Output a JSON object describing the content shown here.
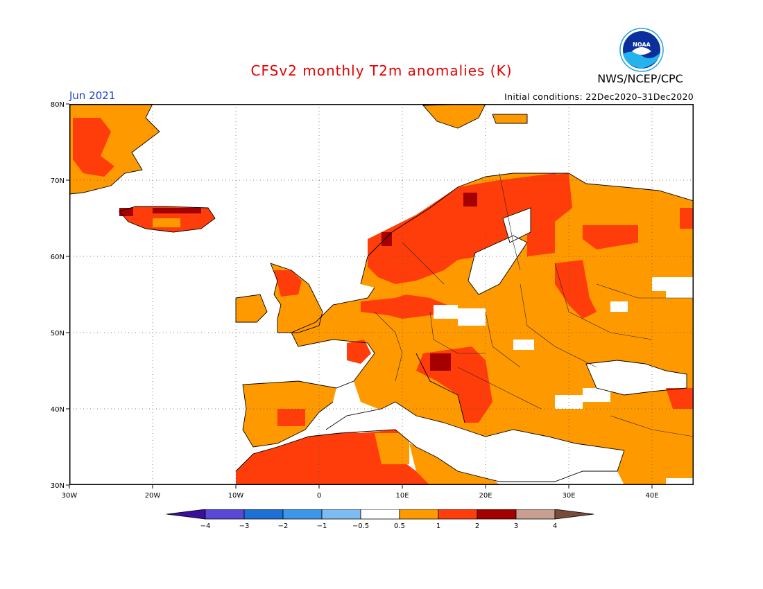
{
  "header": {
    "title": "CFSv2 monthly T2m anomalies (K)",
    "month": "Jun 2021",
    "initial_conditions": "Initial conditions: 22Dec2020–31Dec2020",
    "agency": "NWS/NCEP/CPC",
    "logo_text": "NOAA"
  },
  "map": {
    "lon_range": [
      -30,
      45
    ],
    "lat_range": [
      30,
      80
    ],
    "lat_labels": [
      "80N",
      "70N",
      "60N",
      "50N",
      "40N",
      "30N"
    ],
    "lon_labels": [
      "30W",
      "20W",
      "10W",
      "0",
      "10E",
      "20E",
      "30E",
      "40E"
    ],
    "gridlines": "dotted"
  },
  "legend": {
    "labels": [
      "−4",
      "−3",
      "−2",
      "−1",
      "−0.5",
      "0.5",
      "1",
      "2",
      "3",
      "4"
    ],
    "bin_colors": [
      "#3a0f9a",
      "#5a48d6",
      "#1e6fd6",
      "#3d96e8",
      "#7dbcf2",
      "#ffffff",
      "#ff9900",
      "#ff3d0a",
      "#a50000",
      "#c9a08f",
      "#7a4a3a"
    ]
  },
  "colors": {
    "ocean": "#ffffff",
    "coast": "#000000",
    "anomaly_05_1": "#ff9900",
    "anomaly_1_2": "#ff3d0a",
    "anomaly_2_3": "#a50000"
  }
}
